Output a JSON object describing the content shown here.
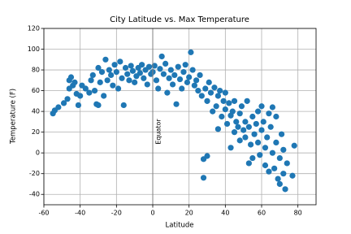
{
  "chart_data": {
    "type": "scatter",
    "title": "City Latitude vs. Max Temperature",
    "x_label": "Latitude",
    "y_label": "Temperature (F)",
    "xlim": [
      -60,
      90
    ],
    "ylim": [
      -50,
      120
    ],
    "xticks": [
      -60,
      -40,
      -20,
      0,
      20,
      40,
      60,
      80
    ],
    "yticks": [
      -40,
      -20,
      0,
      20,
      40,
      60,
      80,
      100,
      120
    ],
    "grid": true,
    "color": "#1f77b4",
    "vline": {
      "x": 0,
      "label": "Equator"
    },
    "x": [
      -55,
      -54,
      -52,
      -49,
      -47,
      -46,
      -46,
      -45,
      -44,
      -43,
      -42,
      -41,
      -40,
      -39,
      -37,
      -35,
      -34,
      -33,
      -32,
      -31,
      -30,
      -30,
      -29,
      -28,
      -27,
      -26,
      -25,
      -24,
      -23,
      -22,
      -21,
      -20,
      -19,
      -18,
      -17,
      -16,
      -15,
      -14,
      -13,
      -12,
      -11,
      -10,
      -9,
      -8,
      -7,
      -6,
      -5,
      -4,
      -3,
      -2,
      -1,
      0,
      1,
      2,
      3,
      4,
      5,
      6,
      7,
      8,
      9,
      10,
      11,
      12,
      13,
      14,
      15,
      16,
      17,
      18,
      19,
      20,
      21,
      22,
      23,
      24,
      25,
      26,
      27,
      28,
      28,
      29,
      30,
      30,
      31,
      32,
      33,
      34,
      35,
      36,
      36,
      37,
      38,
      39,
      40,
      40,
      41,
      42,
      43,
      43,
      44,
      45,
      45,
      46,
      47,
      48,
      48,
      49,
      50,
      51,
      51,
      52,
      53,
      53,
      54,
      55,
      55,
      56,
      57,
      58,
      58,
      59,
      60,
      60,
      61,
      62,
      62,
      63,
      64,
      64,
      65,
      66,
      66,
      67,
      68,
      68,
      69,
      70,
      70,
      71,
      72,
      72,
      73,
      74,
      77,
      78
    ],
    "values": [
      38,
      41,
      44,
      48,
      52,
      62,
      70,
      73,
      65,
      68,
      57,
      46,
      55,
      65,
      62,
      58,
      70,
      75,
      60,
      47,
      46,
      82,
      68,
      78,
      55,
      90,
      70,
      80,
      75,
      65,
      85,
      78,
      62,
      88,
      72,
      46,
      82,
      76,
      70,
      84,
      79,
      68,
      74,
      82,
      77,
      85,
      72,
      80,
      66,
      83,
      76,
      78,
      84,
      70,
      62,
      81,
      93,
      76,
      86,
      58,
      72,
      80,
      66,
      75,
      47,
      83,
      71,
      62,
      78,
      85,
      68,
      73,
      97,
      80,
      65,
      70,
      60,
      75,
      55,
      -24,
      -6,
      62,
      -3,
      50,
      68,
      58,
      40,
      63,
      45,
      55,
      23,
      60,
      35,
      50,
      42,
      58,
      28,
      48,
      5,
      36,
      40,
      20,
      50,
      30,
      25,
      38,
      12,
      45,
      22,
      30,
      15,
      50,
      -10,
      25,
      8,
      35,
      -5,
      18,
      28,
      10,
      40,
      -2,
      45,
      22,
      30,
      -12,
      5,
      15,
      38,
      -18,
      25,
      0,
      44,
      -15,
      10,
      35,
      -25,
      -5,
      -30,
      18,
      -20,
      3,
      -35,
      -10,
      -22,
      7
    ]
  }
}
